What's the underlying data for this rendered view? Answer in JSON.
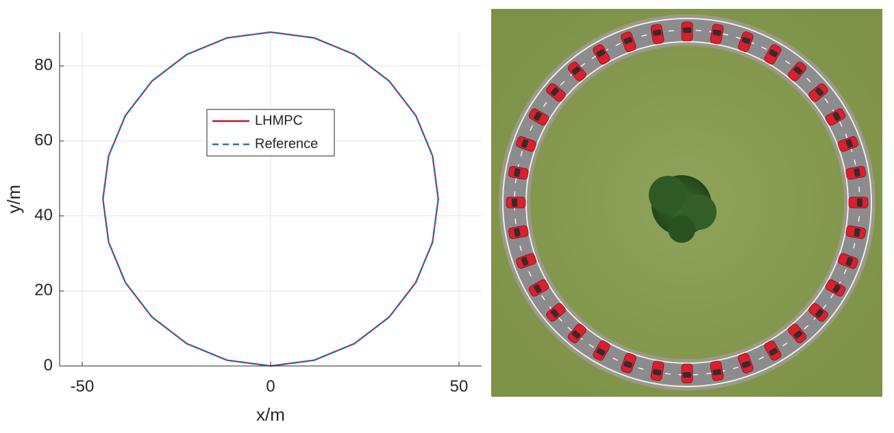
{
  "chart_data": {
    "type": "line",
    "x": [
      0,
      11.52,
      22.25,
      31.47,
      38.54,
      42.98,
      44.5,
      42.98,
      38.54,
      31.47,
      22.25,
      11.52,
      0,
      -11.52,
      -22.25,
      -31.47,
      -38.54,
      -42.98,
      -44.5,
      -42.98,
      -38.54,
      -31.47,
      -22.25,
      -11.52,
      0
    ],
    "series": [
      {
        "name": "LHMPC",
        "color": "#c8102e",
        "linestyle": "solid",
        "values": [
          0,
          1.52,
          5.96,
          13.03,
          22.25,
          32.98,
          44.5,
          56.02,
          66.75,
          75.97,
          83.04,
          87.48,
          89,
          87.48,
          83.04,
          75.97,
          66.75,
          56.02,
          44.5,
          32.98,
          22.25,
          13.03,
          5.96,
          1.52,
          0
        ]
      },
      {
        "name": "Reference",
        "color": "#1f77b4",
        "linestyle": "dashed",
        "values": [
          0,
          1.52,
          5.96,
          13.03,
          22.25,
          32.98,
          44.5,
          56.02,
          66.75,
          75.97,
          83.04,
          87.48,
          89,
          87.48,
          83.04,
          75.97,
          66.75,
          56.02,
          44.5,
          32.98,
          22.25,
          13.03,
          5.96,
          1.52,
          0
        ]
      }
    ],
    "xlabel": "x/m",
    "ylabel": "y/m",
    "xlim": [
      -56,
      56
    ],
    "ylim": [
      0,
      89
    ],
    "xticks": [
      -50,
      0,
      50
    ],
    "yticks": [
      0,
      20,
      40,
      60,
      80
    ],
    "grid": true,
    "legend_loc": "upper center"
  }
}
